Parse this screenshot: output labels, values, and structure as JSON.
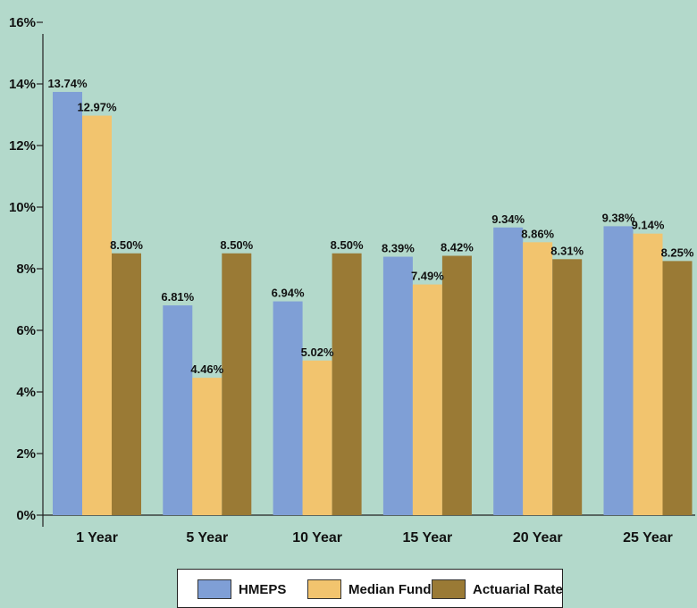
{
  "chart_data": {
    "type": "bar",
    "title": "",
    "xlabel": "",
    "ylabel": "",
    "categories": [
      "1 Year",
      "5 Year",
      "10 Year",
      "15 Year",
      "20 Year",
      "25 Year"
    ],
    "series": [
      {
        "name": "HMEPS",
        "color": "#7f9fd6",
        "values": [
          13.74,
          6.81,
          6.94,
          8.39,
          9.34,
          9.38
        ],
        "labels": [
          "13.74%",
          "6.81%",
          "6.94%",
          "8.39%",
          "9.34%",
          "9.38%"
        ]
      },
      {
        "name": "Median Fund",
        "color": "#f2c46e",
        "values": [
          12.97,
          4.46,
          5.02,
          7.49,
          8.86,
          9.14
        ],
        "labels": [
          "12.97%",
          "4.46%",
          "5.02%",
          "7.49%",
          "8.86%",
          "9.14%"
        ]
      },
      {
        "name": "Actuarial Rate",
        "color": "#9a7a35",
        "values": [
          8.5,
          8.5,
          8.5,
          8.42,
          8.31,
          8.25
        ],
        "labels": [
          "8.50%",
          "8.50%",
          "8.50%",
          "8.42%",
          "8.31%",
          "8.25%"
        ]
      }
    ],
    "ylim": [
      0,
      16
    ],
    "yticks": [
      0,
      2,
      4,
      6,
      8,
      10,
      12,
      14,
      16
    ],
    "ytick_labels": [
      "0%",
      "2%",
      "4%",
      "6%",
      "8%",
      "10%",
      "12%",
      "14%",
      "16%"
    ],
    "grid": false,
    "legend_position": "bottom-center"
  }
}
